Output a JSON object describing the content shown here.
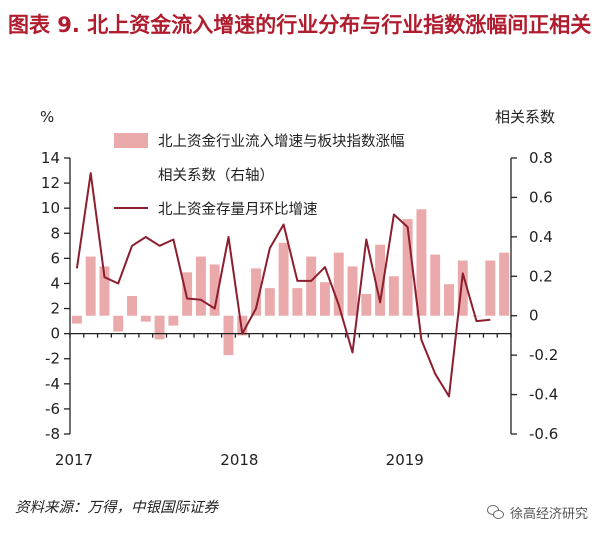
{
  "title": "图表 9.  北上资金流入增速的行业分布与行业指数涨幅间正相关",
  "source": "资料来源：万得，中银国际证券",
  "watermark": "徐高经济研究",
  "colors": {
    "title": "#b01c2e",
    "bar": "#eaa9aa",
    "line": "#8c1e2e",
    "axis": "#222222"
  },
  "chart_data": {
    "type": "bar+line",
    "left_axis": {
      "unit": "%",
      "ylim": [
        -8,
        14
      ],
      "ticks": [
        14,
        12,
        10,
        8,
        6,
        4,
        2,
        0,
        -2,
        -4,
        -6,
        -8
      ]
    },
    "right_axis": {
      "label": "相关系数",
      "ylim": [
        -0.6,
        0.8
      ],
      "ticks": [
        "0.8",
        "0.6",
        "0.4",
        "0.2",
        "0",
        "-0.2",
        "-0.4",
        "-0.6"
      ]
    },
    "x_axis": {
      "tick_labels": [
        "2017",
        "2018",
        "2019"
      ],
      "tick_positions": [
        0,
        12,
        24
      ]
    },
    "legend": [
      "北上资金行业流入增速与板块指数涨幅",
      "相关系数（右轴）",
      "北上资金存量月环比增速"
    ],
    "series": [
      {
        "name": "北上资金行业流入增速与板块指数涨幅相关系数（右轴）",
        "type": "bar",
        "axis": "right",
        "values": [
          -0.04,
          0.3,
          0.25,
          -0.08,
          0.1,
          -0.03,
          -0.12,
          -0.05,
          0.22,
          0.3,
          0.26,
          -0.2,
          -0.1,
          0.24,
          0.14,
          0.37,
          0.14,
          0.3,
          0.17,
          0.32,
          0.25,
          0.11,
          0.36,
          0.2,
          0.49,
          0.54,
          0.31,
          0.16,
          0.28,
          0.0,
          0.28,
          0.32
        ]
      },
      {
        "name": "北上资金存量月环比增速",
        "type": "line",
        "axis": "left",
        "values": [
          5.2,
          12.8,
          4.5,
          4.0,
          7.0,
          7.7,
          7.0,
          7.5,
          2.8,
          2.7,
          2.0,
          7.7,
          0.0,
          2.0,
          6.8,
          8.7,
          4.2,
          4.2,
          5.3,
          2.3,
          -1.5,
          7.5,
          2.5,
          9.5,
          8.5,
          -0.5,
          -3.2,
          -5.0,
          4.8,
          1.0,
          1.1
        ]
      }
    ]
  }
}
